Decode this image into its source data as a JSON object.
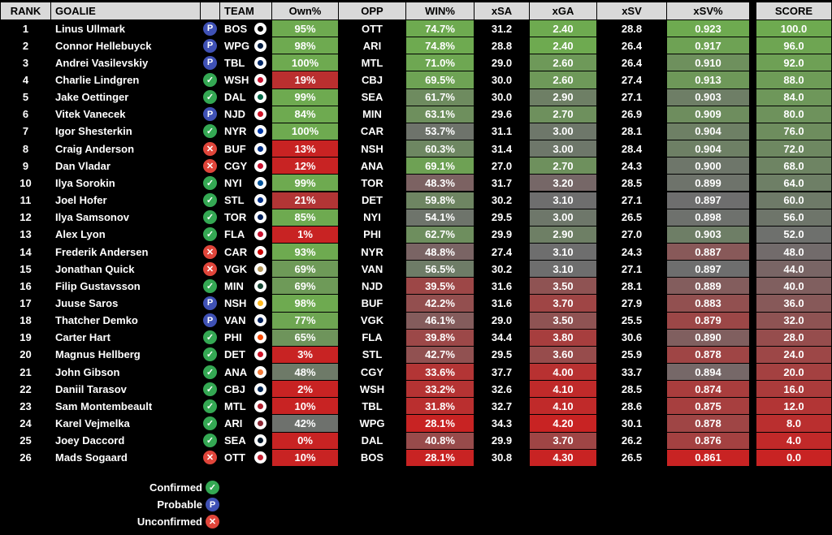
{
  "columns": {
    "rank": "RANK",
    "goalie": "GOALIE",
    "team": "TEAM",
    "own": "Own%",
    "opp": "OPP",
    "win": "WIN%",
    "xsa": "xSA",
    "xga": "xGA",
    "xsv": "xSV",
    "xsvpct": "xSV%",
    "score": "SCORE"
  },
  "status_icons": {
    "confirmed": "check-icon",
    "probable": "p-icon",
    "unconfirmed": "x-icon"
  },
  "team_colors": {
    "BOS": "#000000",
    "WPG": "#041e42",
    "TBL": "#002868",
    "WSH": "#c8102e",
    "DAL": "#006847",
    "NJD": "#ce1126",
    "NYR": "#0038a8",
    "BUF": "#003087",
    "CGY": "#c8102e",
    "NYI": "#00539b",
    "STL": "#002f87",
    "TOR": "#00205b",
    "FLA": "#c8102e",
    "CAR": "#cc0000",
    "VGK": "#b4975a",
    "MIN": "#154734",
    "NSH": "#ffb81c",
    "VAN": "#00205b",
    "PHI": "#f74902",
    "DET": "#ce1126",
    "ANA": "#f47a38",
    "CBJ": "#002654",
    "MTL": "#af1e2d",
    "ARI": "#8c2633",
    "SEA": "#001628",
    "OTT": "#c52032"
  },
  "chart_data": {
    "type": "table",
    "rows": [
      {
        "rank": "1",
        "goalie": "Linus Ullmark",
        "status": "probable",
        "team": "BOS",
        "own": "95%",
        "opp": "OTT",
        "win": "74.7%",
        "xsa": "31.2",
        "xga": "2.40",
        "xsv": "28.8",
        "xsvpct": "0.923",
        "score": "100.0"
      },
      {
        "rank": "2",
        "goalie": "Connor Hellebuyck",
        "status": "probable",
        "team": "WPG",
        "own": "98%",
        "opp": "ARI",
        "win": "74.8%",
        "xsa": "28.8",
        "xga": "2.40",
        "xsv": "26.4",
        "xsvpct": "0.917",
        "score": "96.0"
      },
      {
        "rank": "3",
        "goalie": "Andrei Vasilevskiy",
        "status": "probable",
        "team": "TBL",
        "own": "100%",
        "opp": "MTL",
        "win": "71.0%",
        "xsa": "29.0",
        "xga": "2.60",
        "xsv": "26.4",
        "xsvpct": "0.910",
        "score": "92.0"
      },
      {
        "rank": "4",
        "goalie": "Charlie Lindgren",
        "status": "confirmed",
        "team": "WSH",
        "own": "19%",
        "opp": "CBJ",
        "win": "69.5%",
        "xsa": "30.0",
        "xga": "2.60",
        "xsv": "27.4",
        "xsvpct": "0.913",
        "score": "88.0"
      },
      {
        "rank": "5",
        "goalie": "Jake Oettinger",
        "status": "confirmed",
        "team": "DAL",
        "own": "99%",
        "opp": "SEA",
        "win": "61.7%",
        "xsa": "30.0",
        "xga": "2.90",
        "xsv": "27.1",
        "xsvpct": "0.903",
        "score": "84.0"
      },
      {
        "rank": "6",
        "goalie": "Vitek Vanecek",
        "status": "probable",
        "team": "NJD",
        "own": "84%",
        "opp": "MIN",
        "win": "63.1%",
        "xsa": "29.6",
        "xga": "2.70",
        "xsv": "26.9",
        "xsvpct": "0.909",
        "score": "80.0"
      },
      {
        "rank": "7",
        "goalie": "Igor Shesterkin",
        "status": "confirmed",
        "team": "NYR",
        "own": "100%",
        "opp": "CAR",
        "win": "53.7%",
        "xsa": "31.1",
        "xga": "3.00",
        "xsv": "28.1",
        "xsvpct": "0.904",
        "score": "76.0"
      },
      {
        "rank": "8",
        "goalie": "Craig Anderson",
        "status": "unconfirmed",
        "team": "BUF",
        "own": "13%",
        "opp": "NSH",
        "win": "60.3%",
        "xsa": "31.4",
        "xga": "3.00",
        "xsv": "28.4",
        "xsvpct": "0.904",
        "score": "72.0"
      },
      {
        "rank": "9",
        "goalie": "Dan Vladar",
        "status": "unconfirmed",
        "team": "CGY",
        "own": "12%",
        "opp": "ANA",
        "win": "69.1%",
        "xsa": "27.0",
        "xga": "2.70",
        "xsv": "24.3",
        "xsvpct": "0.900",
        "score": "68.0"
      },
      {
        "rank": "10",
        "goalie": "Ilya Sorokin",
        "status": "confirmed",
        "team": "NYI",
        "own": "99%",
        "opp": "TOR",
        "win": "48.3%",
        "xsa": "31.7",
        "xga": "3.20",
        "xsv": "28.5",
        "xsvpct": "0.899",
        "score": "64.0"
      },
      {
        "rank": "11",
        "goalie": "Joel Hofer",
        "status": "confirmed",
        "team": "STL",
        "own": "21%",
        "opp": "DET",
        "win": "59.8%",
        "xsa": "30.2",
        "xga": "3.10",
        "xsv": "27.1",
        "xsvpct": "0.897",
        "score": "60.0"
      },
      {
        "rank": "12",
        "goalie": "Ilya Samsonov",
        "status": "confirmed",
        "team": "TOR",
        "own": "85%",
        "opp": "NYI",
        "win": "54.1%",
        "xsa": "29.5",
        "xga": "3.00",
        "xsv": "26.5",
        "xsvpct": "0.898",
        "score": "56.0"
      },
      {
        "rank": "13",
        "goalie": "Alex Lyon",
        "status": "confirmed",
        "team": "FLA",
        "own": "1%",
        "opp": "PHI",
        "win": "62.7%",
        "xsa": "29.9",
        "xga": "2.90",
        "xsv": "27.0",
        "xsvpct": "0.903",
        "score": "52.0"
      },
      {
        "rank": "14",
        "goalie": "Frederik Andersen",
        "status": "unconfirmed",
        "team": "CAR",
        "own": "93%",
        "opp": "NYR",
        "win": "48.8%",
        "xsa": "27.4",
        "xga": "3.10",
        "xsv": "24.3",
        "xsvpct": "0.887",
        "score": "48.0"
      },
      {
        "rank": "15",
        "goalie": "Jonathan Quick",
        "status": "unconfirmed",
        "team": "VGK",
        "own": "69%",
        "opp": "VAN",
        "win": "56.5%",
        "xsa": "30.2",
        "xga": "3.10",
        "xsv": "27.1",
        "xsvpct": "0.897",
        "score": "44.0"
      },
      {
        "rank": "16",
        "goalie": "Filip Gustavsson",
        "status": "confirmed",
        "team": "MIN",
        "own": "69%",
        "opp": "NJD",
        "win": "39.5%",
        "xsa": "31.6",
        "xga": "3.50",
        "xsv": "28.1",
        "xsvpct": "0.889",
        "score": "40.0"
      },
      {
        "rank": "17",
        "goalie": "Juuse Saros",
        "status": "probable",
        "team": "NSH",
        "own": "98%",
        "opp": "BUF",
        "win": "42.2%",
        "xsa": "31.6",
        "xga": "3.70",
        "xsv": "27.9",
        "xsvpct": "0.883",
        "score": "36.0"
      },
      {
        "rank": "18",
        "goalie": "Thatcher Demko",
        "status": "probable",
        "team": "VAN",
        "own": "77%",
        "opp": "VGK",
        "win": "46.1%",
        "xsa": "29.0",
        "xga": "3.50",
        "xsv": "25.5",
        "xsvpct": "0.879",
        "score": "32.0"
      },
      {
        "rank": "19",
        "goalie": "Carter Hart",
        "status": "confirmed",
        "team": "PHI",
        "own": "65%",
        "opp": "FLA",
        "win": "39.8%",
        "xsa": "34.4",
        "xga": "3.80",
        "xsv": "30.6",
        "xsvpct": "0.890",
        "score": "28.0"
      },
      {
        "rank": "20",
        "goalie": "Magnus Hellberg",
        "status": "confirmed",
        "team": "DET",
        "own": "3%",
        "opp": "STL",
        "win": "42.7%",
        "xsa": "29.5",
        "xga": "3.60",
        "xsv": "25.9",
        "xsvpct": "0.878",
        "score": "24.0"
      },
      {
        "rank": "21",
        "goalie": "John Gibson",
        "status": "confirmed",
        "team": "ANA",
        "own": "48%",
        "opp": "CGY",
        "win": "33.6%",
        "xsa": "37.7",
        "xga": "4.00",
        "xsv": "33.7",
        "xsvpct": "0.894",
        "score": "20.0"
      },
      {
        "rank": "22",
        "goalie": "Daniil Tarasov",
        "status": "confirmed",
        "team": "CBJ",
        "own": "2%",
        "opp": "WSH",
        "win": "33.2%",
        "xsa": "32.6",
        "xga": "4.10",
        "xsv": "28.5",
        "xsvpct": "0.874",
        "score": "16.0"
      },
      {
        "rank": "23",
        "goalie": "Sam Montembeault",
        "status": "confirmed",
        "team": "MTL",
        "own": "10%",
        "opp": "TBL",
        "win": "31.8%",
        "xsa": "32.7",
        "xga": "4.10",
        "xsv": "28.6",
        "xsvpct": "0.875",
        "score": "12.0"
      },
      {
        "rank": "24",
        "goalie": "Karel Vejmelka",
        "status": "confirmed",
        "team": "ARI",
        "own": "42%",
        "opp": "WPG",
        "win": "28.1%",
        "xsa": "34.3",
        "xga": "4.20",
        "xsv": "30.1",
        "xsvpct": "0.878",
        "score": "8.0"
      },
      {
        "rank": "25",
        "goalie": "Joey Daccord",
        "status": "confirmed",
        "team": "SEA",
        "own": "0%",
        "opp": "DAL",
        "win": "40.8%",
        "xsa": "29.9",
        "xga": "3.70",
        "xsv": "26.2",
        "xsvpct": "0.876",
        "score": "4.0"
      },
      {
        "rank": "26",
        "goalie": "Mads Sogaard",
        "status": "unconfirmed",
        "team": "OTT",
        "own": "10%",
        "opp": "BOS",
        "win": "28.1%",
        "xsa": "30.8",
        "xga": "4.30",
        "xsv": "26.5",
        "xsvpct": "0.861",
        "score": "0.0"
      }
    ]
  },
  "legend": [
    {
      "key": "confirmed",
      "label": "Confirmed"
    },
    {
      "key": "probable",
      "label": "Probable"
    },
    {
      "key": "unconfirmed",
      "label": "Unconfirmed"
    }
  ]
}
